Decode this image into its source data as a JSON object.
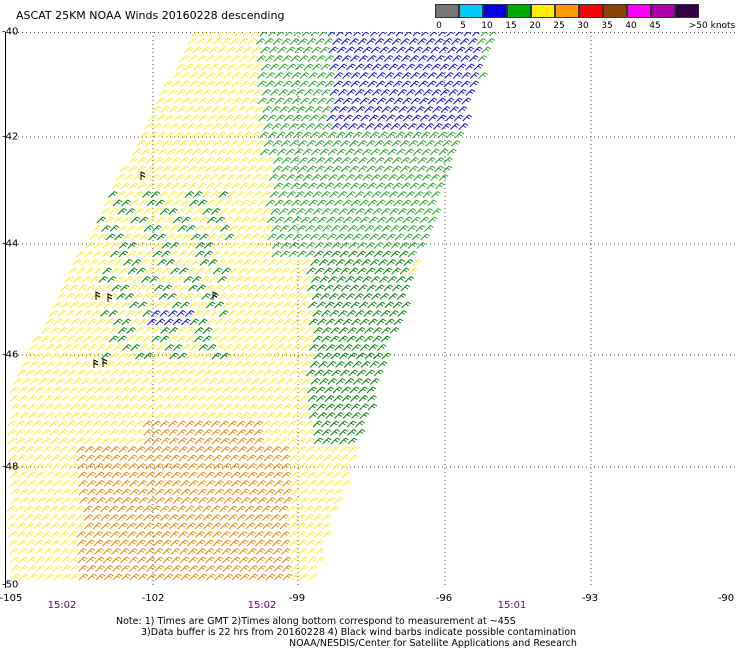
{
  "title": "ASCAT 25KM NOAA Winds 20160228 descending",
  "legend": {
    "units": ">50 knots",
    "labels": [
      "0",
      "5",
      "10",
      "15",
      "20",
      "25",
      "30",
      "35",
      "40",
      "45"
    ],
    "colors": [
      "#777777",
      "#00ccff",
      "#0000dd",
      "#00aa00",
      "#ffee00",
      "#ff9900",
      "#ff0000",
      "#884400",
      "#ff00ff",
      "#aa00aa",
      "#330044"
    ]
  },
  "lat_labels": [
    "-40",
    "-42",
    "-44",
    "-46",
    "-48",
    "-50"
  ],
  "lon_labels": [
    "-105",
    "-102",
    "-99",
    "-96",
    "-93",
    "-90"
  ],
  "time_labels": [
    "15:02",
    "15:02",
    "15:01"
  ],
  "notes": [
    "Note: 1) Times are GMT 2)Times along bottom correspond to measurement at ~45S",
    "3)Data buffer is 22 hrs from 20160228 4) Black wind barbs indicate possible contamination",
    "NOAA/NESDIS/Center for Satellite Applications and Research"
  ],
  "colors": {
    "grid": "#555555",
    "time_label": "#6a0078",
    "wind_green": "#22aa22",
    "wind_dark_green": "#008800",
    "wind_yellow": "#ffee33",
    "wind_orange": "#ee8800",
    "wind_blue": "#1111cc",
    "contamination": "#000000"
  },
  "map_data": {
    "lon_range": [
      -105,
      -90
    ],
    "lat_range": [
      -50,
      -40
    ],
    "swath_description": "descending satellite pass",
    "dominant_wind_direction": "from south-west"
  }
}
